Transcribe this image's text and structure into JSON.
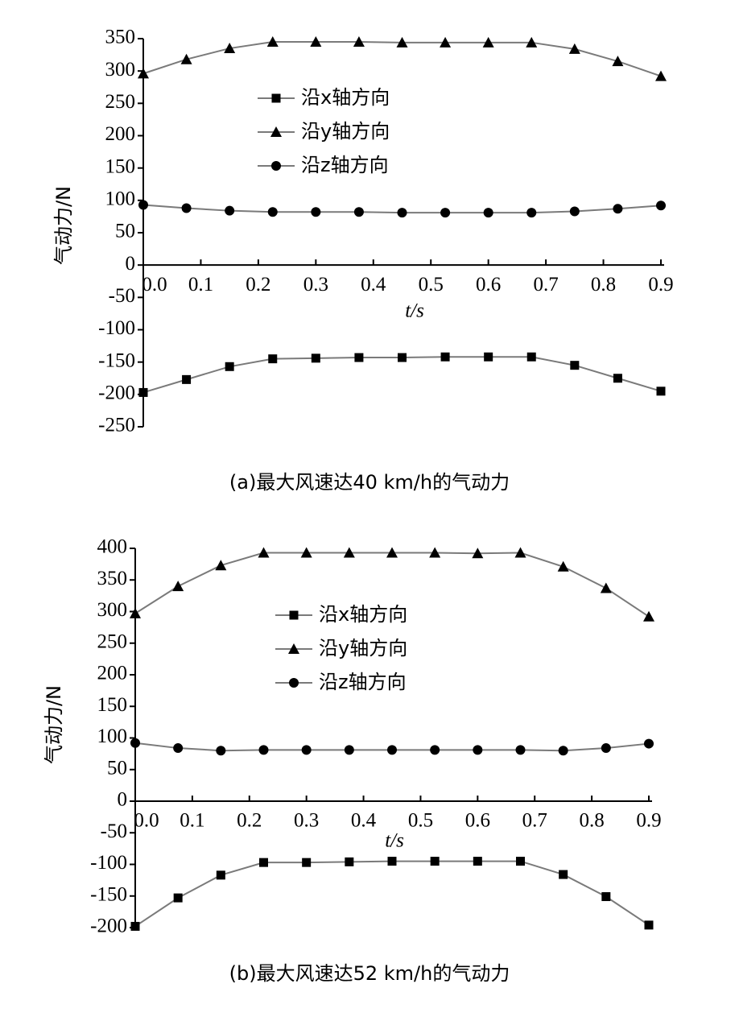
{
  "chart_data": [
    {
      "type": "line",
      "caption": "(a)最大风速达40 km/h的气动力",
      "xlabel": "t/s",
      "ylabel": "气动力/N",
      "x": [
        0,
        0.075,
        0.15,
        0.225,
        0.3,
        0.375,
        0.45,
        0.525,
        0.6,
        0.675,
        0.75,
        0.825,
        0.9
      ],
      "xlim": [
        0,
        0.9
      ],
      "xticks": [
        {
          "value": 0,
          "label": "0.0"
        },
        0.1,
        0.2,
        0.3,
        0.4,
        0.5,
        0.6,
        0.7,
        0.8,
        0.9
      ],
      "ylim": [
        -250,
        350
      ],
      "yticks": [
        -250,
        -200,
        -150,
        -100,
        -50,
        0,
        50,
        100,
        150,
        200,
        250,
        300,
        350
      ],
      "series": [
        {
          "name": "沿x轴方向",
          "marker": "square",
          "color": "#000000",
          "values": [
            -197,
            -177,
            -157,
            -145,
            -144,
            -143,
            -143,
            -142,
            -142,
            -142,
            -155,
            -175,
            -195
          ]
        },
        {
          "name": "沿y轴方向",
          "marker": "triangle",
          "color": "#000000",
          "values": [
            296,
            318,
            335,
            345,
            345,
            345,
            344,
            344,
            344,
            344,
            334,
            315,
            292
          ]
        },
        {
          "name": "沿z轴方向",
          "marker": "circle",
          "color": "#000000",
          "values": [
            93,
            88,
            84,
            82,
            82,
            82,
            81,
            81,
            81,
            81,
            83,
            87,
            92
          ]
        }
      ]
    },
    {
      "type": "line",
      "caption": "(b)最大风速达52 km/h的气动力",
      "xlabel": "t/s",
      "ylabel": "气动力/N",
      "x": [
        0,
        0.075,
        0.15,
        0.225,
        0.3,
        0.375,
        0.45,
        0.525,
        0.6,
        0.675,
        0.75,
        0.825,
        0.9
      ],
      "xlim": [
        0,
        0.9
      ],
      "xticks": [
        {
          "value": 0,
          "label": "0.0"
        },
        0.1,
        0.2,
        0.3,
        0.4,
        0.5,
        0.6,
        0.7,
        0.8,
        0.9
      ],
      "ylim": [
        -200,
        400
      ],
      "yticks": [
        -200,
        -150,
        -100,
        -50,
        0,
        50,
        100,
        150,
        200,
        250,
        300,
        350,
        400
      ],
      "series": [
        {
          "name": "沿x轴方向",
          "marker": "square",
          "color": "#000000",
          "values": [
            -198,
            -153,
            -117,
            -97,
            -97,
            -96,
            -95,
            -95,
            -95,
            -95,
            -116,
            -151,
            -196
          ]
        },
        {
          "name": "沿y轴方向",
          "marker": "triangle",
          "color": "#000000",
          "values": [
            297,
            340,
            373,
            393,
            393,
            393,
            393,
            393,
            392,
            393,
            371,
            337,
            292
          ]
        },
        {
          "name": "沿z轴方向",
          "marker": "circle",
          "color": "#000000",
          "values": [
            92,
            84,
            80,
            81,
            81,
            81,
            81,
            81,
            81,
            81,
            80,
            84,
            91
          ]
        }
      ]
    }
  ]
}
